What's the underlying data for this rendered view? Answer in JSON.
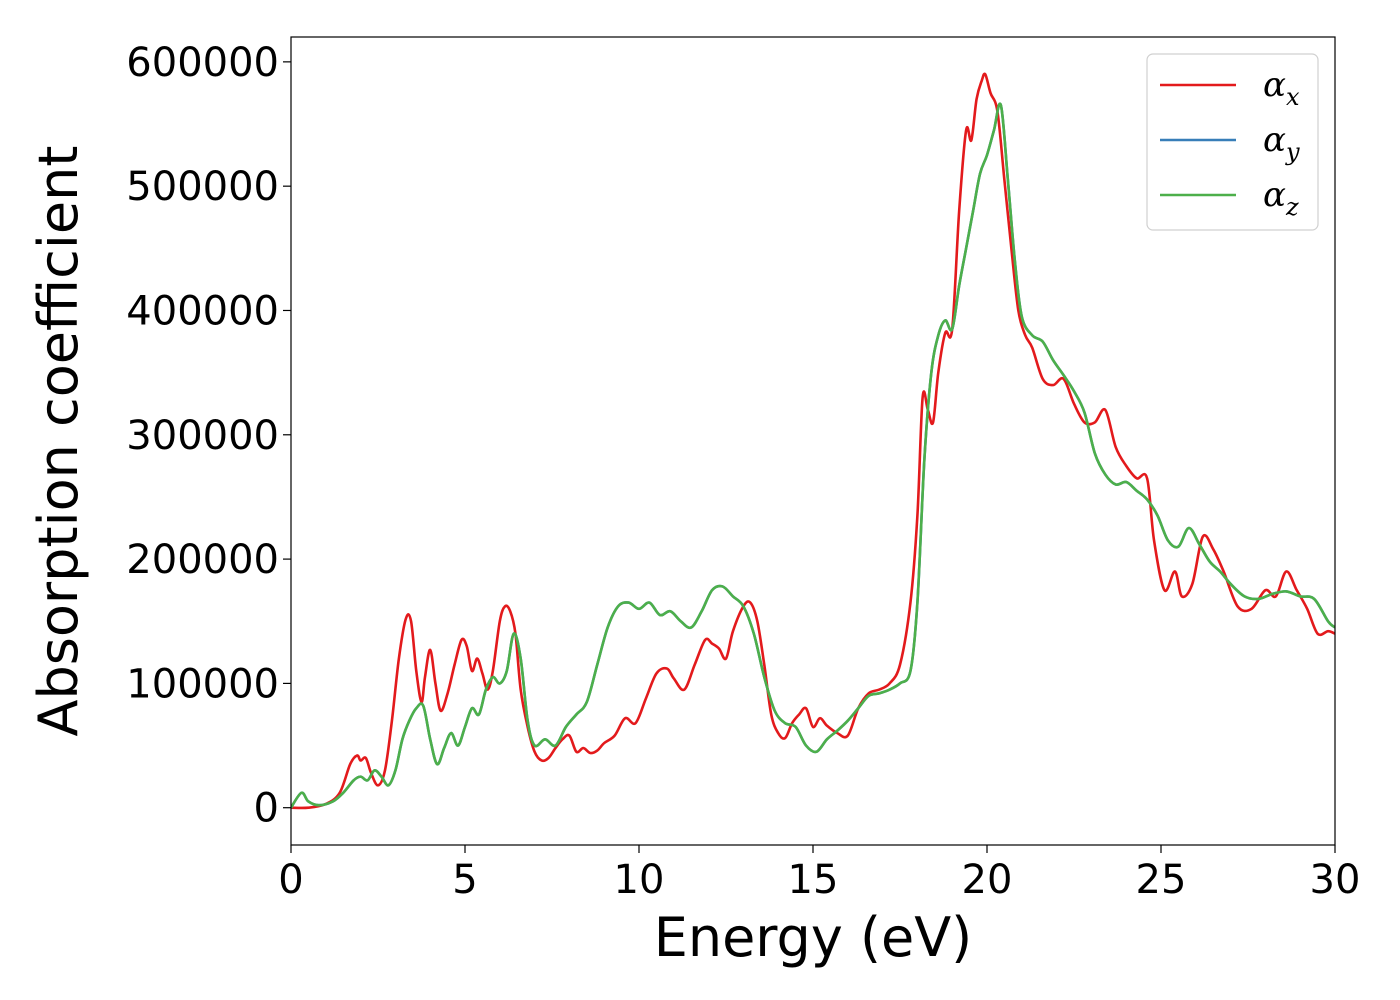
{
  "chart_data": {
    "type": "line",
    "xlabel": "Energy (eV)",
    "ylabel": "Absorption coefficient",
    "xlim": [
      0,
      30
    ],
    "ylim": [
      -30000,
      620000
    ],
    "xticks": [
      0,
      5,
      10,
      15,
      20,
      25,
      30
    ],
    "xtick_labels": [
      "0",
      "5",
      "10",
      "15",
      "20",
      "25",
      "30"
    ],
    "yticks": [
      0,
      100000,
      200000,
      300000,
      400000,
      500000,
      600000
    ],
    "ytick_labels": [
      "0",
      "100000",
      "200000",
      "300000",
      "400000",
      "500000",
      "600000"
    ],
    "grid": false,
    "legend_position": "top-right",
    "series": [
      {
        "name": "αx",
        "legend_base": "α",
        "legend_sub": "x",
        "color": "#e31a1c",
        "x": [
          0,
          0.5,
          1,
          1.4,
          1.7,
          1.9,
          2.0,
          2.15,
          2.3,
          2.5,
          2.7,
          2.9,
          3.1,
          3.3,
          3.45,
          3.6,
          3.75,
          3.85,
          4.0,
          4.15,
          4.3,
          4.5,
          4.7,
          4.9,
          5.05,
          5.2,
          5.35,
          5.5,
          5.65,
          5.8,
          6.0,
          6.15,
          6.3,
          6.45,
          6.6,
          6.8,
          7.0,
          7.2,
          7.4,
          7.6,
          7.8,
          8.0,
          8.2,
          8.4,
          8.6,
          8.8,
          9.0,
          9.3,
          9.6,
          9.9,
          10.2,
          10.5,
          10.8,
          11.0,
          11.3,
          11.6,
          11.9,
          12.1,
          12.3,
          12.5,
          12.7,
          13.0,
          13.2,
          13.4,
          13.6,
          13.8,
          14.0,
          14.2,
          14.4,
          14.6,
          14.8,
          15.0,
          15.2,
          15.4,
          15.7,
          16.0,
          16.3,
          16.6,
          16.9,
          17.2,
          17.5,
          17.8,
          18.0,
          18.15,
          18.3,
          18.45,
          18.6,
          18.8,
          19.0,
          19.2,
          19.4,
          19.55,
          19.7,
          19.85,
          19.95,
          20.1,
          20.3,
          20.5,
          20.7,
          20.9,
          21.1,
          21.3,
          21.6,
          21.9,
          22.2,
          22.5,
          22.8,
          23.1,
          23.4,
          23.7,
          24.0,
          24.3,
          24.6,
          24.8,
          25.1,
          25.4,
          25.6,
          25.9,
          26.2,
          26.5,
          26.8,
          27.2,
          27.6,
          28.0,
          28.3,
          28.6,
          28.9,
          29.2,
          29.5,
          29.8,
          30.0
        ],
        "y": [
          0,
          0,
          3000,
          12000,
          35000,
          42000,
          38000,
          40000,
          28000,
          18000,
          30000,
          70000,
          120000,
          152000,
          150000,
          110000,
          85000,
          105000,
          127000,
          100000,
          78000,
          92000,
          115000,
          135000,
          130000,
          110000,
          120000,
          108000,
          95000,
          110000,
          150000,
          162000,
          158000,
          140000,
          95000,
          65000,
          45000,
          38000,
          40000,
          48000,
          55000,
          58000,
          45000,
          48000,
          44000,
          46000,
          52000,
          58000,
          72000,
          68000,
          88000,
          108000,
          112000,
          104000,
          95000,
          115000,
          135000,
          132000,
          128000,
          120000,
          142000,
          162000,
          165000,
          150000,
          115000,
          75000,
          60000,
          56000,
          68000,
          75000,
          80000,
          65000,
          72000,
          66000,
          60000,
          58000,
          80000,
          92000,
          95000,
          100000,
          115000,
          165000,
          235000,
          330000,
          320000,
          310000,
          350000,
          382000,
          385000,
          480000,
          545000,
          537000,
          570000,
          585000,
          590000,
          575000,
          560000,
          505000,
          450000,
          400000,
          380000,
          370000,
          345000,
          340000,
          345000,
          325000,
          310000,
          310000,
          320000,
          290000,
          275000,
          265000,
          265000,
          215000,
          175000,
          190000,
          170000,
          180000,
          218000,
          208000,
          190000,
          162000,
          160000,
          175000,
          170000,
          190000,
          175000,
          160000,
          140000,
          142000,
          140000
        ]
      },
      {
        "name": "αy",
        "legend_base": "α",
        "legend_sub": "y",
        "color": "#377eb8",
        "x": [
          0,
          0.3,
          0.5,
          0.8,
          1.2,
          1.5,
          1.8,
          2.0,
          2.2,
          2.4,
          2.6,
          2.8,
          3.0,
          3.2,
          3.4,
          3.6,
          3.8,
          4.0,
          4.2,
          4.4,
          4.6,
          4.8,
          5.0,
          5.2,
          5.4,
          5.6,
          5.8,
          6.0,
          6.2,
          6.4,
          6.6,
          6.8,
          7.0,
          7.3,
          7.6,
          7.9,
          8.2,
          8.5,
          8.8,
          9.1,
          9.4,
          9.7,
          10.0,
          10.3,
          10.6,
          10.9,
          11.2,
          11.5,
          11.8,
          12.1,
          12.4,
          12.7,
          13.0,
          13.3,
          13.6,
          13.9,
          14.2,
          14.5,
          14.8,
          15.1,
          15.4,
          15.7,
          16.0,
          16.3,
          16.6,
          16.9,
          17.2,
          17.5,
          17.8,
          18.0,
          18.2,
          18.4,
          18.6,
          18.8,
          19.0,
          19.2,
          19.4,
          19.6,
          19.8,
          20.0,
          20.2,
          20.4,
          20.6,
          20.8,
          21.0,
          21.3,
          21.6,
          21.9,
          22.2,
          22.5,
          22.8,
          23.1,
          23.4,
          23.7,
          24.0,
          24.3,
          24.6,
          24.9,
          25.2,
          25.5,
          25.8,
          26.1,
          26.4,
          26.7,
          27.0,
          27.4,
          27.8,
          28.2,
          28.6,
          29.0,
          29.4,
          29.8,
          30.0
        ],
        "y": [
          0,
          12000,
          5000,
          2000,
          5000,
          12000,
          22000,
          25000,
          22000,
          30000,
          25000,
          18000,
          30000,
          55000,
          70000,
          80000,
          82000,
          55000,
          35000,
          48000,
          60000,
          50000,
          65000,
          80000,
          75000,
          95000,
          105000,
          100000,
          110000,
          140000,
          120000,
          70000,
          50000,
          55000,
          50000,
          65000,
          75000,
          85000,
          115000,
          145000,
          162000,
          165000,
          160000,
          165000,
          155000,
          158000,
          150000,
          145000,
          158000,
          175000,
          178000,
          170000,
          162000,
          140000,
          105000,
          78000,
          68000,
          65000,
          50000,
          45000,
          55000,
          62000,
          70000,
          80000,
          90000,
          92000,
          95000,
          100000,
          110000,
          165000,
          280000,
          350000,
          380000,
          392000,
          385000,
          420000,
          450000,
          480000,
          510000,
          525000,
          545000,
          565000,
          505000,
          440000,
          395000,
          380000,
          375000,
          360000,
          348000,
          335000,
          318000,
          285000,
          268000,
          260000,
          262000,
          255000,
          248000,
          235000,
          215000,
          210000,
          225000,
          212000,
          198000,
          190000,
          180000,
          170000,
          168000,
          172000,
          174000,
          170000,
          168000,
          150000,
          145000
        ]
      },
      {
        "name": "αz",
        "legend_base": "α",
        "legend_sub": "z",
        "color": "#4daf4a",
        "x": [
          0,
          0.3,
          0.5,
          0.8,
          1.2,
          1.5,
          1.8,
          2.0,
          2.2,
          2.4,
          2.6,
          2.8,
          3.0,
          3.2,
          3.4,
          3.6,
          3.8,
          4.0,
          4.2,
          4.4,
          4.6,
          4.8,
          5.0,
          5.2,
          5.4,
          5.6,
          5.8,
          6.0,
          6.2,
          6.4,
          6.6,
          6.8,
          7.0,
          7.3,
          7.6,
          7.9,
          8.2,
          8.5,
          8.8,
          9.1,
          9.4,
          9.7,
          10.0,
          10.3,
          10.6,
          10.9,
          11.2,
          11.5,
          11.8,
          12.1,
          12.4,
          12.7,
          13.0,
          13.3,
          13.6,
          13.9,
          14.2,
          14.5,
          14.8,
          15.1,
          15.4,
          15.7,
          16.0,
          16.3,
          16.6,
          16.9,
          17.2,
          17.5,
          17.8,
          18.0,
          18.2,
          18.4,
          18.6,
          18.8,
          19.0,
          19.2,
          19.4,
          19.6,
          19.8,
          20.0,
          20.2,
          20.4,
          20.6,
          20.8,
          21.0,
          21.3,
          21.6,
          21.9,
          22.2,
          22.5,
          22.8,
          23.1,
          23.4,
          23.7,
          24.0,
          24.3,
          24.6,
          24.9,
          25.2,
          25.5,
          25.8,
          26.1,
          26.4,
          26.7,
          27.0,
          27.4,
          27.8,
          28.2,
          28.6,
          29.0,
          29.4,
          29.8,
          30.0
        ],
        "y": [
          0,
          12000,
          5000,
          2000,
          5000,
          12000,
          22000,
          25000,
          22000,
          30000,
          25000,
          18000,
          30000,
          55000,
          70000,
          80000,
          82000,
          55000,
          35000,
          48000,
          60000,
          50000,
          65000,
          80000,
          75000,
          95000,
          105000,
          100000,
          110000,
          140000,
          120000,
          70000,
          50000,
          55000,
          50000,
          65000,
          75000,
          85000,
          115000,
          145000,
          162000,
          165000,
          160000,
          165000,
          155000,
          158000,
          150000,
          145000,
          158000,
          175000,
          178000,
          170000,
          162000,
          140000,
          105000,
          78000,
          68000,
          65000,
          50000,
          45000,
          55000,
          62000,
          70000,
          80000,
          90000,
          92000,
          95000,
          100000,
          110000,
          165000,
          280000,
          350000,
          380000,
          392000,
          385000,
          420000,
          450000,
          480000,
          510000,
          525000,
          545000,
          565000,
          505000,
          440000,
          395000,
          380000,
          375000,
          360000,
          348000,
          335000,
          318000,
          285000,
          268000,
          260000,
          262000,
          255000,
          248000,
          235000,
          215000,
          210000,
          225000,
          212000,
          198000,
          190000,
          180000,
          170000,
          168000,
          172000,
          174000,
          170000,
          168000,
          150000,
          145000
        ]
      }
    ]
  }
}
